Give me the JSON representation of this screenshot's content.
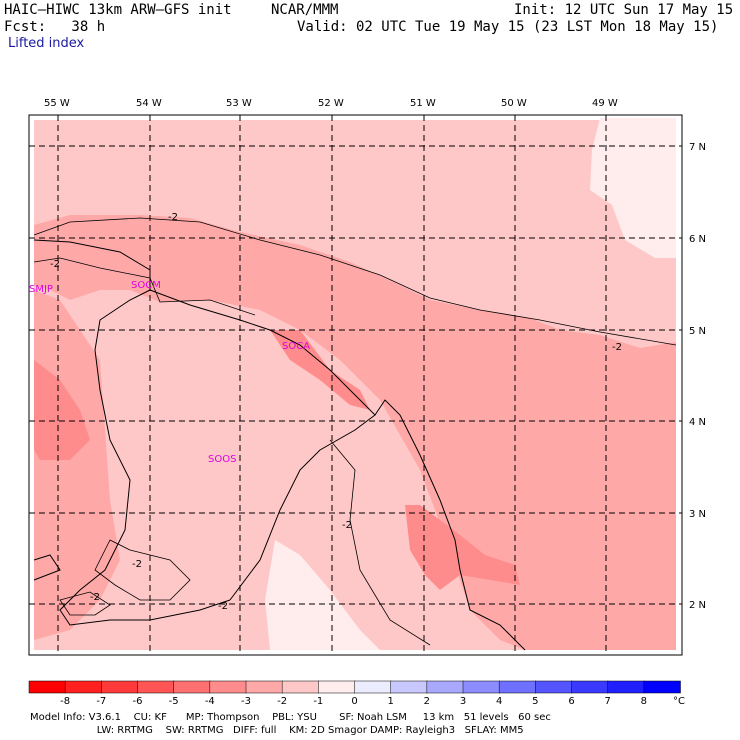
{
  "header": {
    "model_line": "HAIC–HIWC 13km ARW–GFS init",
    "org": "NCAR/MMM",
    "init": "Init: 12 UTC Sun 17 May 15",
    "fcst": "Fcst:   38 h",
    "valid": "Valid: 02 UTC Tue 19 May 15 (23 LST Mon 18 May 15)",
    "field": "Lifted index"
  },
  "map": {
    "lon_labels": [
      "55 W",
      "54 W",
      "53 W",
      "52 W",
      "51 W",
      "50 W",
      "49 W"
    ],
    "lat_labels": [
      "7 N",
      "6 N",
      "5 N",
      "4 N",
      "3 N",
      "2 N"
    ],
    "stations": [
      "SMJP",
      "SOCM",
      "SOCA",
      "SOOS"
    ],
    "contour_labels": [
      "-2",
      "-2",
      "-2",
      "-2",
      "-2",
      "-2",
      "-2"
    ]
  },
  "colorbar": {
    "labels": [
      "-8",
      "-7",
      "-6",
      "-5",
      "-4",
      "-3",
      "-2",
      "-1",
      "0",
      "1",
      "2",
      "3",
      "4",
      "5",
      "6",
      "7",
      "8"
    ],
    "unit": "°C",
    "colors": [
      "#ff0000",
      "#ff2020",
      "#ff3a3a",
      "#ff5555",
      "#ff7070",
      "#ff8c8c",
      "#ffa8a8",
      "#ffc8c8",
      "#ffecec",
      "#ececff",
      "#c8c8ff",
      "#a8a8ff",
      "#8c8cff",
      "#7070ff",
      "#5555ff",
      "#3a3aff",
      "#2020ff",
      "#0000ff"
    ]
  },
  "footer": {
    "line1": "Model Info: V3.6.1    CU: KF      MP: Thompson    PBL: YSU       SF: Noah LSM     13 km   51 levels   60 sec",
    "line2": "                     LW: RRTMG    SW: RRTMG   DIFF: full    KM: 2D Smagor DAMP: Rayleigh3   SFLAY: MM5"
  }
}
